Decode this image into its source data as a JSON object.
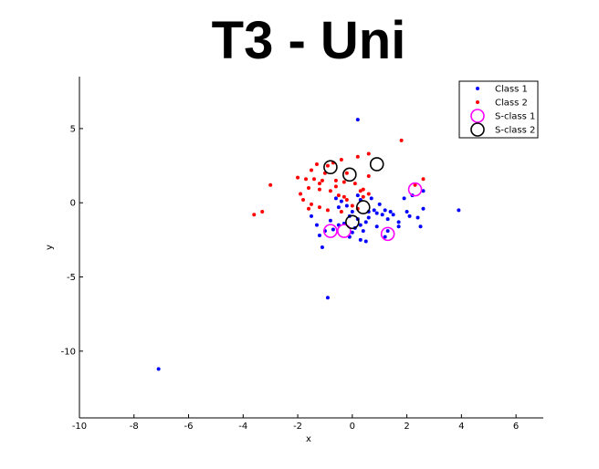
{
  "chart_data": {
    "type": "scatter",
    "title": "T3 - Uni",
    "xlabel": "x",
    "ylabel": "y",
    "xlim": [
      -10,
      7
    ],
    "ylim": [
      -14.5,
      8.5
    ],
    "xticks": [
      -10,
      -8,
      -6,
      -4,
      -2,
      0,
      2,
      4,
      6
    ],
    "yticks": [
      -10,
      -5,
      0,
      5
    ],
    "grid": false,
    "legend_position": "top-right",
    "series": [
      {
        "name": "Class 1",
        "marker": "dot",
        "color": "#0000ff",
        "points": [
          [
            -7.1,
            -11.2
          ],
          [
            -0.9,
            -6.4
          ],
          [
            0.2,
            5.6
          ],
          [
            3.9,
            -0.5
          ],
          [
            2.6,
            0.8
          ],
          [
            2.2,
            0.5
          ],
          [
            1.9,
            0.3
          ],
          [
            2.6,
            -0.4
          ],
          [
            2.0,
            -0.6
          ],
          [
            2.4,
            -1.0
          ],
          [
            2.5,
            -1.6
          ],
          [
            1.7,
            -1.6
          ],
          [
            1.7,
            -1.3
          ],
          [
            1.3,
            -1.1
          ],
          [
            1.5,
            -0.8
          ],
          [
            1.1,
            -0.8
          ],
          [
            1.2,
            -0.5
          ],
          [
            1.4,
            -0.6
          ],
          [
            0.9,
            -0.7
          ],
          [
            0.8,
            -0.5
          ],
          [
            1.0,
            -0.1
          ],
          [
            0.6,
            -0.6
          ],
          [
            0.6,
            -1.0
          ],
          [
            0.5,
            -1.3
          ],
          [
            0.3,
            -1.5
          ],
          [
            0.1,
            -1.7
          ],
          [
            0.0,
            -2.0
          ],
          [
            -0.1,
            -2.3
          ],
          [
            0.3,
            -2.5
          ],
          [
            0.5,
            -2.6
          ],
          [
            -0.3,
            -1.4
          ],
          [
            -0.5,
            -1.5
          ],
          [
            -0.7,
            -1.8
          ],
          [
            -1.0,
            -1.9
          ],
          [
            -1.2,
            -2.2
          ],
          [
            -1.1,
            -3.0
          ],
          [
            -0.8,
            -1.2
          ],
          [
            -1.3,
            -1.5
          ],
          [
            -1.5,
            -0.9
          ],
          [
            -0.6,
            0.3
          ],
          [
            -0.4,
            0.1
          ],
          [
            -0.2,
            -0.2
          ],
          [
            0.2,
            0.5
          ],
          [
            0.3,
            0.2
          ],
          [
            1.2,
            -2.3
          ],
          [
            1.3,
            -1.9
          ],
          [
            0.9,
            -1.6
          ],
          [
            0.4,
            -1.9
          ],
          [
            -0.1,
            -0.9
          ],
          [
            0.7,
            0.3
          ],
          [
            0.0,
            -0.6
          ],
          [
            -0.5,
            -0.3
          ],
          [
            2.1,
            -0.9
          ],
          [
            0.2,
            -1.1
          ]
        ]
      },
      {
        "name": "Class 2",
        "marker": "dot",
        "color": "#ff0000",
        "points": [
          [
            1.8,
            4.2
          ],
          [
            0.6,
            3.3
          ],
          [
            0.2,
            3.1
          ],
          [
            -0.4,
            2.9
          ],
          [
            -1.3,
            2.6
          ],
          [
            -0.9,
            2.5
          ],
          [
            -0.2,
            2.0
          ],
          [
            -1.5,
            2.2
          ],
          [
            -1.0,
            2.0
          ],
          [
            -1.7,
            1.6
          ],
          [
            -2.0,
            1.7
          ],
          [
            -1.4,
            1.6
          ],
          [
            -1.1,
            1.5
          ],
          [
            -0.6,
            1.5
          ],
          [
            -0.3,
            1.4
          ],
          [
            0.1,
            1.3
          ],
          [
            0.6,
            1.8
          ],
          [
            -3.0,
            1.2
          ],
          [
            -1.6,
            1.0
          ],
          [
            -1.2,
            0.9
          ],
          [
            -0.8,
            0.8
          ],
          [
            -0.5,
            0.5
          ],
          [
            -0.3,
            0.4
          ],
          [
            -1.8,
            0.2
          ],
          [
            -1.5,
            -0.1
          ],
          [
            -1.2,
            -0.3
          ],
          [
            -1.6,
            -0.4
          ],
          [
            -0.9,
            -0.5
          ],
          [
            -0.2,
            0.2
          ],
          [
            0.4,
            0.9
          ],
          [
            0.6,
            0.6
          ],
          [
            0.4,
            0.4
          ],
          [
            0.0,
            -0.2
          ],
          [
            -3.3,
            -0.6
          ],
          [
            -3.6,
            -0.8
          ],
          [
            2.3,
            1.2
          ],
          [
            2.6,
            1.6
          ],
          [
            -0.6,
            1.1
          ],
          [
            -1.9,
            0.6
          ],
          [
            0.3,
            0.8
          ],
          [
            -0.7,
            2.7
          ],
          [
            -1.2,
            1.3
          ],
          [
            -0.4,
            -0.6
          ],
          [
            0.2,
            -0.4
          ]
        ]
      },
      {
        "name": "S-class 1",
        "marker": "circle",
        "color": "#ff00ff",
        "points": [
          [
            -0.8,
            -1.9
          ],
          [
            -0.3,
            -1.9
          ],
          [
            1.3,
            -2.1
          ],
          [
            2.3,
            0.9
          ]
        ]
      },
      {
        "name": "S-class 2",
        "marker": "circle",
        "color": "#000000",
        "points": [
          [
            -0.8,
            2.4
          ],
          [
            -0.1,
            1.9
          ],
          [
            0.9,
            2.6
          ],
          [
            0.4,
            -0.3
          ],
          [
            0.0,
            -1.3
          ]
        ]
      }
    ]
  }
}
